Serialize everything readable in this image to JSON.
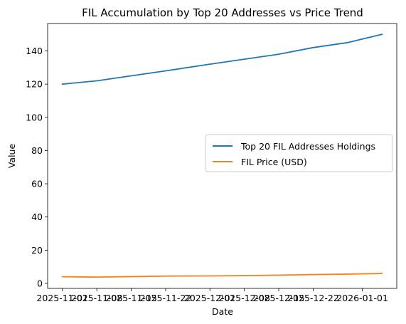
{
  "chart_data": {
    "type": "line",
    "title": "FIL Accumulation by Top 20 Addresses vs Price Trend",
    "xlabel": "Date",
    "ylabel": "Value",
    "x": [
      "2025-11-01",
      "2025-11-08",
      "2025-11-15",
      "2025-11-22",
      "2025-12-01",
      "2025-12-08",
      "2025-12-15",
      "2025-12-22",
      "2025-12-29",
      "2026-01-05"
    ],
    "xlim": [
      "2025-10-29",
      "2026-01-08"
    ],
    "ylim": [
      -3.0,
      156.5
    ],
    "x_ticks": [
      "2025-11-01",
      "2025-11-08",
      "2025-11-15",
      "2025-11-22",
      "2025-12-01",
      "2025-12-08",
      "2025-12-15",
      "2025-12-22",
      "2026-01-01"
    ],
    "y_ticks": [
      0,
      20,
      40,
      60,
      80,
      100,
      120,
      140
    ],
    "y_tick_labels": [
      "0",
      "20",
      "40",
      "60",
      "80",
      "100",
      "120",
      "140"
    ],
    "grid": false,
    "legend_placement": "center-right",
    "series": [
      {
        "name": "Top 20 FIL Addresses Holdings",
        "color": "#1f77b4",
        "values": [
          120,
          122,
          125,
          128,
          132,
          135,
          138,
          142,
          145,
          150
        ]
      },
      {
        "name": "FIL Price (USD)",
        "color": "#ff7f0e",
        "values": [
          4.0,
          3.8,
          4.1,
          4.4,
          4.5,
          4.7,
          5.0,
          5.3,
          5.6,
          6.0
        ]
      }
    ]
  }
}
